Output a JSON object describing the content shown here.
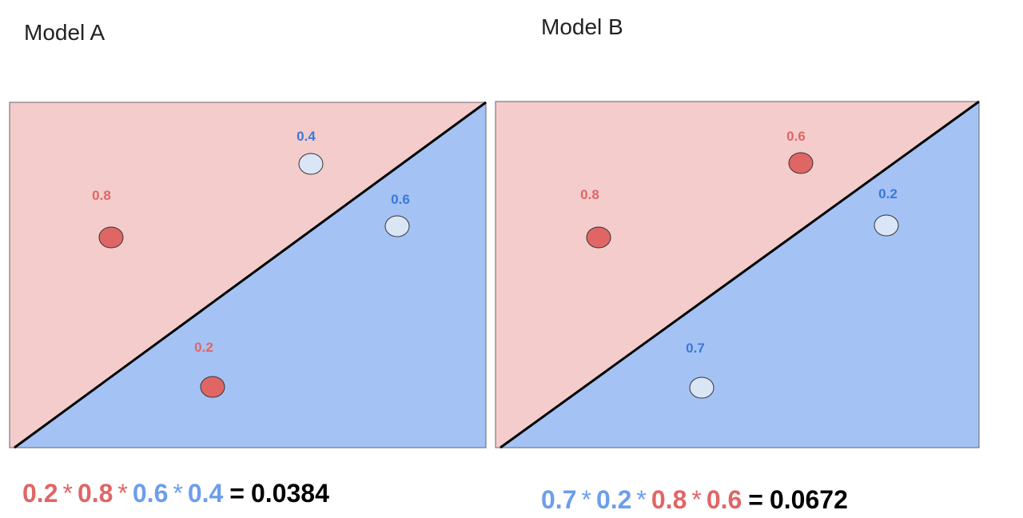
{
  "panels": [
    {
      "title": "Model A",
      "points": [
        {
          "label": "0.8",
          "color": "#e06666",
          "fill": "#e06666"
        },
        {
          "label": "0.4",
          "color": "#3c78d8",
          "fill": "#dae5f5"
        },
        {
          "label": "0.6",
          "color": "#3c78d8",
          "fill": "#dae5f5"
        },
        {
          "label": "0.2",
          "color": "#e06666",
          "fill": "#e06666"
        }
      ],
      "formula": {
        "terms": [
          {
            "text": "0.2",
            "color": "#e06666"
          },
          {
            "text": "0.8",
            "color": "#e06666"
          },
          {
            "text": "0.6",
            "color": "#6d9eeb"
          },
          {
            "text": "0.4",
            "color": "#6d9eeb"
          }
        ],
        "operator": "*",
        "equals": "=",
        "result": "0.0384"
      }
    },
    {
      "title": "Model B",
      "points": [
        {
          "label": "0.8",
          "color": "#e06666",
          "fill": "#e06666"
        },
        {
          "label": "0.6",
          "color": "#e06666",
          "fill": "#e06666"
        },
        {
          "label": "0.2",
          "color": "#3c78d8",
          "fill": "#dae5f5"
        },
        {
          "label": "0.7",
          "color": "#3c78d8",
          "fill": "#dae5f5"
        }
      ],
      "formula": {
        "terms": [
          {
            "text": "0.7",
            "color": "#6d9eeb"
          },
          {
            "text": "0.2",
            "color": "#6d9eeb"
          },
          {
            "text": "0.8",
            "color": "#e06666"
          },
          {
            "text": "0.6",
            "color": "#e06666"
          }
        ],
        "operator": "*",
        "equals": "=",
        "result": "0.0672"
      }
    }
  ]
}
